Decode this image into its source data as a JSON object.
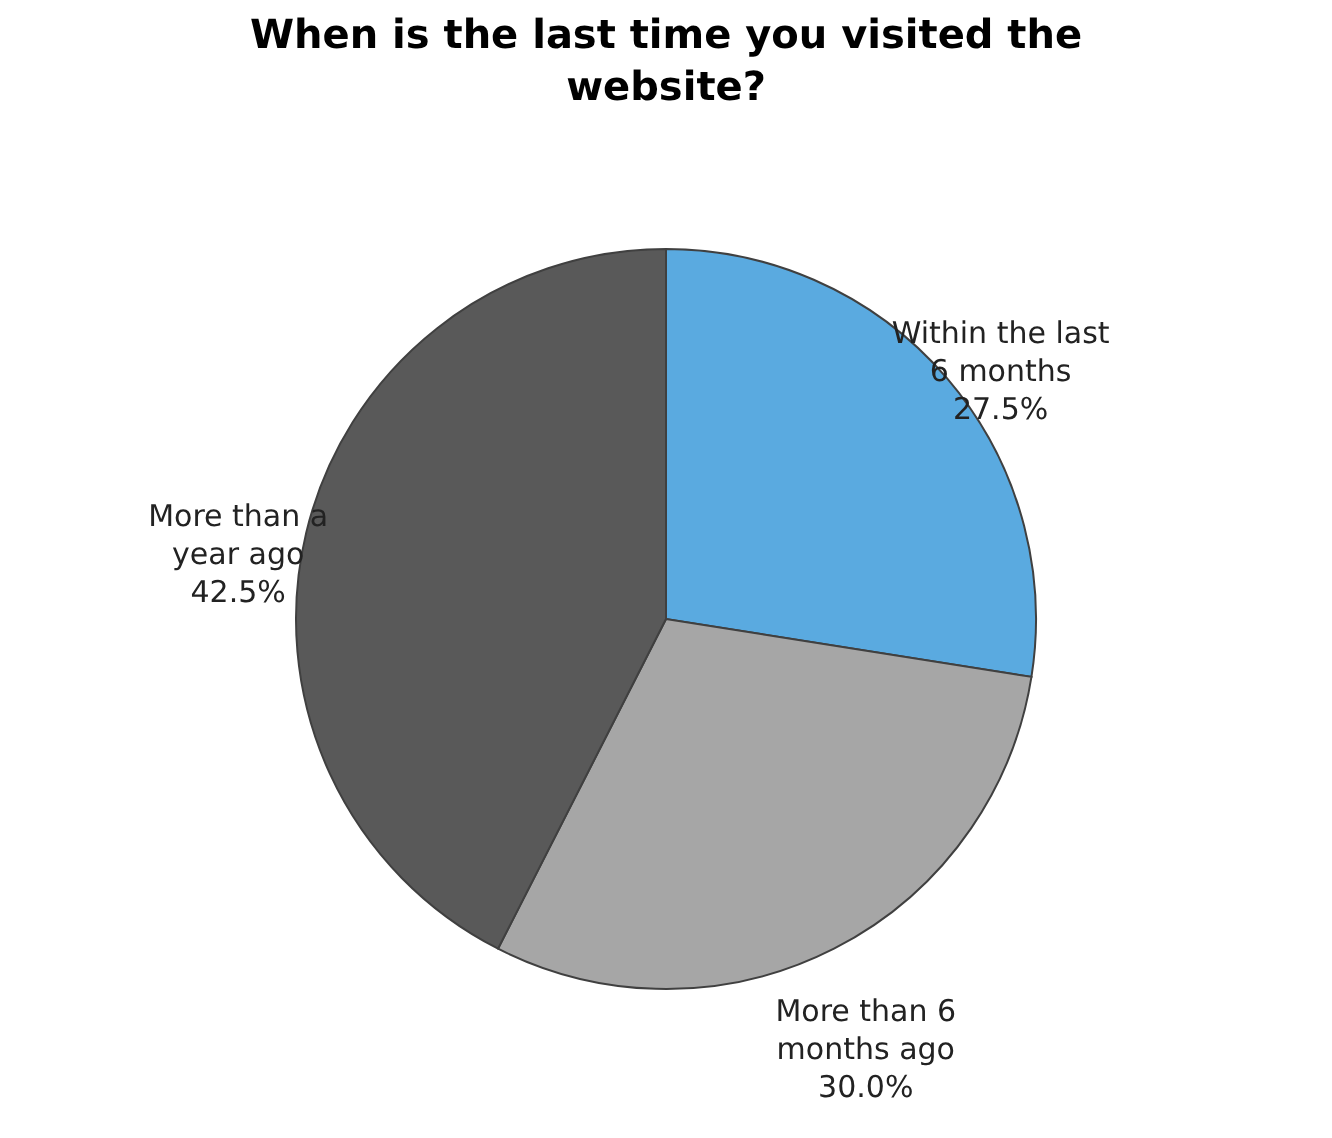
{
  "chart_data": {
    "type": "pie",
    "title": "When is the last time you visited the website?",
    "categories": [
      "Within the last 6 months",
      "More than 6 months ago",
      "More than a year ago"
    ],
    "values": [
      27.5,
      30.0,
      42.5
    ],
    "colors": [
      "#5aaae0",
      "#a6a6a6",
      "#595959"
    ],
    "value_labels": [
      "27.5%",
      "30.0%",
      "42.5%"
    ],
    "legend": false
  }
}
